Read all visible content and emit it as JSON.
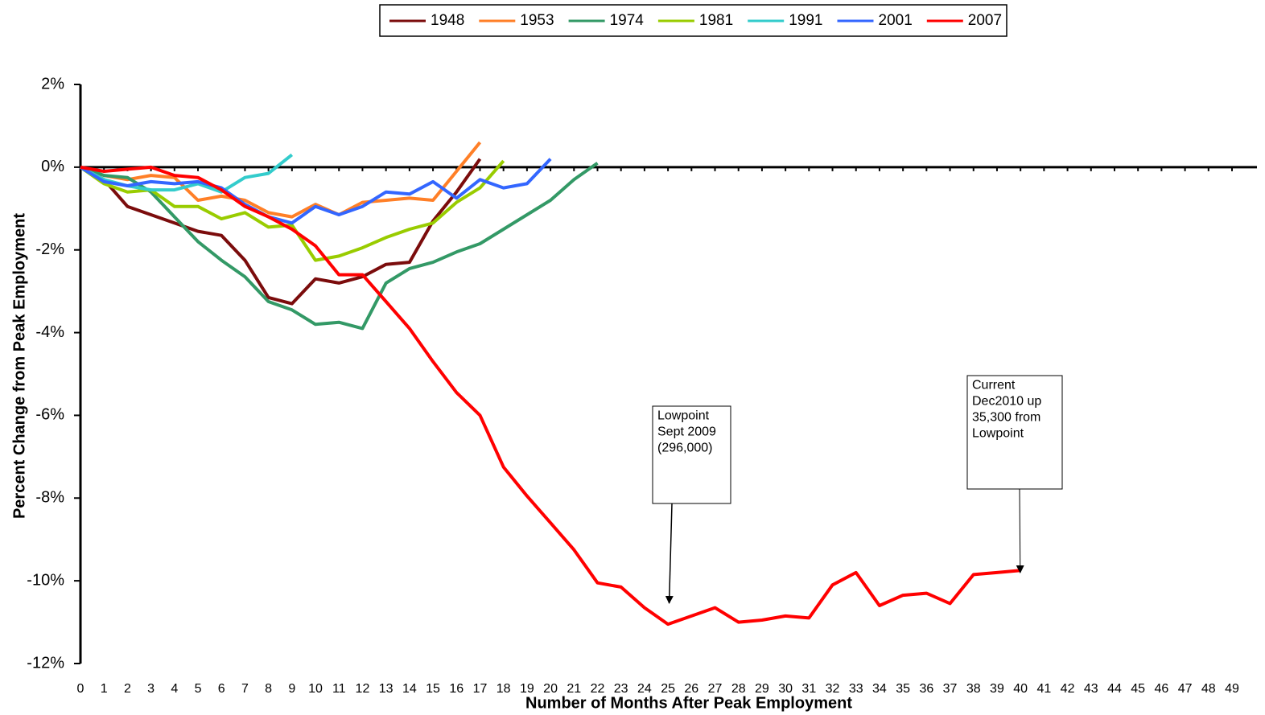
{
  "chart_data": {
    "type": "line",
    "ylabel": "Percent Change from Peak Employment",
    "xlabel": "Number of Months After Peak Employment",
    "x": [
      0,
      1,
      2,
      3,
      4,
      5,
      6,
      7,
      8,
      9,
      10,
      11,
      12,
      13,
      14,
      15,
      16,
      17,
      18,
      19,
      20,
      21,
      22,
      23,
      24,
      25,
      26,
      27,
      28,
      29,
      30,
      31,
      32,
      33,
      34,
      35,
      36,
      37,
      38,
      39,
      40
    ],
    "xlim": [
      0,
      49
    ],
    "xticks": [
      0,
      1,
      2,
      3,
      4,
      5,
      6,
      7,
      8,
      9,
      10,
      11,
      12,
      13,
      14,
      15,
      16,
      17,
      18,
      19,
      20,
      21,
      22,
      23,
      24,
      25,
      26,
      27,
      28,
      29,
      30,
      31,
      32,
      33,
      34,
      35,
      36,
      37,
      38,
      39,
      40,
      41,
      42,
      43,
      44,
      45,
      46,
      47,
      48,
      49
    ],
    "ylim": [
      -12,
      2
    ],
    "yticks": [
      {
        "value": 2,
        "label": "2%"
      },
      {
        "value": 0,
        "label": "0%"
      },
      {
        "value": -2,
        "label": "-2%"
      },
      {
        "value": -4,
        "label": "-4%"
      },
      {
        "value": -6,
        "label": "-6%"
      },
      {
        "value": -8,
        "label": "-8%"
      },
      {
        "value": -10,
        "label": "-10%"
      },
      {
        "value": -12,
        "label": "-12%"
      }
    ],
    "legend": "top",
    "series": [
      {
        "name": "1948",
        "color": "#7b0c0c",
        "values": [
          0,
          -0.3,
          -0.95,
          -1.15,
          -1.35,
          -1.55,
          -1.65,
          -2.25,
          -3.15,
          -3.3,
          -2.7,
          -2.8,
          -2.65,
          -2.35,
          -2.3,
          -1.3,
          -0.6,
          0.2,
          null,
          null,
          null,
          null,
          null,
          null,
          null,
          null,
          null,
          null,
          null,
          null,
          null,
          null,
          null,
          null,
          null,
          null,
          null,
          null,
          null,
          null,
          null
        ]
      },
      {
        "name": "1953",
        "color": "#ff7f27",
        "values": [
          0,
          -0.2,
          -0.3,
          -0.2,
          -0.25,
          -0.8,
          -0.7,
          -0.8,
          -1.1,
          -1.2,
          -0.9,
          -1.15,
          -0.85,
          -0.8,
          -0.75,
          -0.8,
          -0.1,
          0.6,
          null,
          null,
          null,
          null,
          null,
          null,
          null,
          null,
          null,
          null,
          null,
          null,
          null,
          null,
          null,
          null,
          null,
          null,
          null,
          null,
          null,
          null,
          null
        ]
      },
      {
        "name": "1974",
        "color": "#339966",
        "values": [
          0,
          -0.2,
          -0.25,
          -0.6,
          -1.2,
          -1.8,
          -2.25,
          -2.65,
          -3.25,
          -3.45,
          -3.8,
          -3.75,
          -3.9,
          -2.8,
          -2.45,
          -2.3,
          -2.05,
          -1.85,
          -1.5,
          -1.15,
          -0.8,
          -0.3,
          0.1,
          null,
          null,
          null,
          null,
          null,
          null,
          null,
          null,
          null,
          null,
          null,
          null,
          null,
          null,
          null,
          null,
          null,
          null
        ]
      },
      {
        "name": "1981",
        "color": "#99cc00",
        "values": [
          0,
          -0.4,
          -0.6,
          -0.55,
          -0.95,
          -0.95,
          -1.25,
          -1.1,
          -1.45,
          -1.4,
          -2.25,
          -2.15,
          -1.95,
          -1.7,
          -1.5,
          -1.35,
          -0.85,
          -0.5,
          0.15,
          null,
          null,
          null,
          null,
          null,
          null,
          null,
          null,
          null,
          null,
          null,
          null,
          null,
          null,
          null,
          null,
          null,
          null,
          null,
          null,
          null,
          null
        ]
      },
      {
        "name": "1991",
        "color": "#33cccc",
        "values": [
          0,
          -0.3,
          -0.45,
          -0.55,
          -0.55,
          -0.4,
          -0.6,
          -0.25,
          -0.15,
          0.3,
          null,
          null,
          null,
          null,
          null,
          null,
          null,
          null,
          null,
          null,
          null,
          null,
          null,
          null,
          null,
          null,
          null,
          null,
          null,
          null,
          null,
          null,
          null,
          null,
          null,
          null,
          null,
          null,
          null,
          null,
          null
        ]
      },
      {
        "name": "2001",
        "color": "#3366ff",
        "values": [
          0,
          -0.35,
          -0.45,
          -0.35,
          -0.4,
          -0.35,
          -0.5,
          -0.9,
          -1.2,
          -1.35,
          -0.95,
          -1.15,
          -0.95,
          -0.6,
          -0.65,
          -0.35,
          -0.75,
          -0.3,
          -0.5,
          -0.4,
          0.2,
          null,
          null,
          null,
          null,
          null,
          null,
          null,
          null,
          null,
          null,
          null,
          null,
          null,
          null,
          null,
          null,
          null,
          null,
          null,
          null
        ]
      },
      {
        "name": "2007",
        "color": "#ff0000",
        "values": [
          0,
          -0.1,
          -0.05,
          0,
          -0.2,
          -0.25,
          -0.55,
          -0.95,
          -1.2,
          -1.5,
          -1.9,
          -2.6,
          -2.6,
          -3.25,
          -3.9,
          -4.7,
          -5.45,
          -6,
          -7.25,
          -7.95,
          -8.6,
          -9.25,
          -10.05,
          -10.15,
          -10.65,
          -11.05,
          -10.85,
          -10.65,
          -11,
          -10.95,
          -10.85,
          -10.9,
          -10.1,
          -9.8,
          -10.6,
          -10.35,
          -10.3,
          -10.55,
          -9.85,
          -9.8,
          -9.75
        ]
      }
    ],
    "annotations": [
      {
        "lines": [
          "Lowpoint",
          "Sept 2009",
          "(296,000)"
        ],
        "x": 25
      },
      {
        "lines": [
          "Current",
          "Dec2010 up",
          "35,300 from",
          "Lowpoint"
        ],
        "x": 40
      }
    ]
  }
}
